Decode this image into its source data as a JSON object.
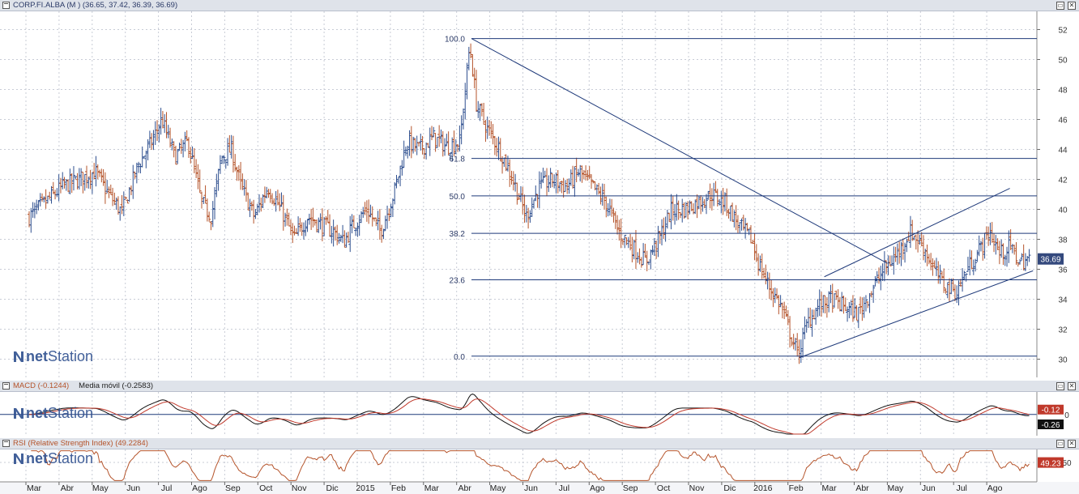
{
  "window": {
    "main_title": "CORP.FI.ALBA (M ) (36.65, 37.42, 36.39, 36.69)",
    "macd_title": "MACD (-0.1244)",
    "macd_ma_title": "Media móvil (-0.2583)",
    "rsi_title": "RSI (Relative Strength Index) (49.2284)",
    "minimize_glyph": "▭",
    "close_glyph": "✕"
  },
  "watermark": {
    "prefix": "net",
    "suffix": "Station"
  },
  "colors": {
    "up": "#2e4f8f",
    "down": "#b5542b",
    "line": "#1f3a7a",
    "grid": "#c8ccd6",
    "macd": "#111111",
    "signal": "#c0392b",
    "rsi": "#b5542b",
    "last_price_bg": "#34497d"
  },
  "chart_data": [
    {
      "type": "ohlc",
      "name": "price",
      "ylim": [
        29,
        53
      ],
      "yticks": [
        30,
        32,
        34,
        36,
        38,
        40,
        42,
        44,
        46,
        48,
        50,
        52
      ],
      "last_price_label": "36.69",
      "last_price": 36.69,
      "x_months": [
        "Mar",
        "Abr",
        "May",
        "Jun",
        "Jul",
        "Ago",
        "Sep",
        "Oct",
        "Nov",
        "Dic",
        "2015",
        "Feb",
        "Mar",
        "Abr",
        "May",
        "Jun",
        "Jul",
        "Ago",
        "Sep",
        "Oct",
        "Nov",
        "Dic",
        "2016",
        "Feb",
        "Mar",
        "Abr",
        "May",
        "Jun",
        "Jul",
        "Ago"
      ],
      "x_label_months": [
        "Mar",
        "Abr",
        "May",
        "Jun",
        "Jul",
        "Ago",
        "Sep",
        "Oct",
        "Nov",
        "Dic",
        "2015",
        "Feb",
        "Mar",
        "Abr",
        "May",
        "Jun",
        "Jul",
        "Ago",
        "Sep",
        "Oct",
        "Nov",
        "Dic",
        "2016",
        "Feb",
        "Mar",
        "Abr",
        "May",
        "Jun",
        "Jul",
        "Ago"
      ],
      "close_path": [
        [
          0,
          39.5
        ],
        [
          0.5,
          40.5
        ],
        [
          1.0,
          41.5
        ],
        [
          1.5,
          42.0
        ],
        [
          2.0,
          42.5
        ],
        [
          2.4,
          41.0
        ],
        [
          2.8,
          39.8
        ],
        [
          3.3,
          43.0
        ],
        [
          3.7,
          44.5
        ],
        [
          4.0,
          46.0
        ],
        [
          4.4,
          43.5
        ],
        [
          4.8,
          44.5
        ],
        [
          5.2,
          40.5
        ],
        [
          5.5,
          39.5
        ],
        [
          5.8,
          43.5
        ],
        [
          6.1,
          44.0
        ],
        [
          6.4,
          41.5
        ],
        [
          6.8,
          39.5
        ],
        [
          7.2,
          41.5
        ],
        [
          7.6,
          40.0
        ],
        [
          8.0,
          38.0
        ],
        [
          8.4,
          39.5
        ],
        [
          8.8,
          39.0
        ],
        [
          9.2,
          38.5
        ],
        [
          9.5,
          37.8
        ],
        [
          9.8,
          39.0
        ],
        [
          10.2,
          40.0
        ],
        [
          10.6,
          38.5
        ],
        [
          11.0,
          41.0
        ],
        [
          11.4,
          44.5
        ],
        [
          11.8,
          44.0
        ],
        [
          12.2,
          44.8
        ],
        [
          12.6,
          44.2
        ],
        [
          13.0,
          44.5
        ],
        [
          13.3,
          51.0
        ],
        [
          13.5,
          47.0
        ],
        [
          13.8,
          45.5
        ],
        [
          14.2,
          44.0
        ],
        [
          14.6,
          42.0
        ],
        [
          15.0,
          39.5
        ],
        [
          15.4,
          41.5
        ],
        [
          15.8,
          42.0
        ],
        [
          16.2,
          41.5
        ],
        [
          16.6,
          42.5
        ],
        [
          17.0,
          41.5
        ],
        [
          17.4,
          40.5
        ],
        [
          17.8,
          38.5
        ],
        [
          18.2,
          37.5
        ],
        [
          18.6,
          36.5
        ],
        [
          19.0,
          38.0
        ],
        [
          19.4,
          40.0
        ],
        [
          19.8,
          40.0
        ],
        [
          20.2,
          40.5
        ],
        [
          20.6,
          41.0
        ],
        [
          21.0,
          40.5
        ],
        [
          21.4,
          39.0
        ],
        [
          21.8,
          38.0
        ],
        [
          22.0,
          36.5
        ],
        [
          22.3,
          35.0
        ],
        [
          22.7,
          33.5
        ],
        [
          23.0,
          31.5
        ],
        [
          23.2,
          30.3
        ],
        [
          23.5,
          32.5
        ],
        [
          23.8,
          33.5
        ],
        [
          24.2,
          34.0
        ],
        [
          24.6,
          33.5
        ],
        [
          25.0,
          33.0
        ],
        [
          25.4,
          34.5
        ],
        [
          25.8,
          36.0
        ],
        [
          26.2,
          37.0
        ],
        [
          26.6,
          38.5
        ],
        [
          27.0,
          37.5
        ],
        [
          27.3,
          36.0
        ],
        [
          27.6,
          35.0
        ],
        [
          28.0,
          34.5
        ],
        [
          28.3,
          36.0
        ],
        [
          28.6,
          37.0
        ],
        [
          29.0,
          38.5
        ],
        [
          29.3,
          37.0
        ],
        [
          29.6,
          37.5
        ],
        [
          29.9,
          36.5
        ],
        [
          30.2,
          36.7
        ]
      ],
      "fib_levels": [
        {
          "label": "100.0",
          "value": 51.4
        },
        {
          "label": "61.8",
          "value": 43.4
        },
        {
          "label": "50.0",
          "value": 40.9
        },
        {
          "label": "38.2",
          "value": 38.4
        },
        {
          "label": "23.6",
          "value": 35.3
        },
        {
          "label": "0.0",
          "value": 30.2
        }
      ],
      "fib_start_month": 13.35,
      "trendlines": [
        {
          "from": [
            13.35,
            51.4
          ],
          "to": [
            25.9,
            36.4
          ]
        },
        {
          "from": [
            23.25,
            30.1
          ],
          "to": [
            30.3,
            35.9
          ]
        },
        {
          "from": [
            24.0,
            35.5
          ],
          "to": [
            29.6,
            41.4
          ]
        }
      ]
    },
    {
      "type": "line",
      "name": "macd",
      "ylim": [
        -1.5,
        1.6
      ],
      "yticks": [
        0
      ],
      "label_macd": "-0.12",
      "label_signal": "-0.26",
      "value_macd": -0.12,
      "value_signal": -0.26
    },
    {
      "type": "line",
      "name": "rsi",
      "ylim": [
        20,
        70
      ],
      "yticks": [
        50
      ],
      "label_rsi": "49.23",
      "value_rsi": 49.23
    }
  ]
}
